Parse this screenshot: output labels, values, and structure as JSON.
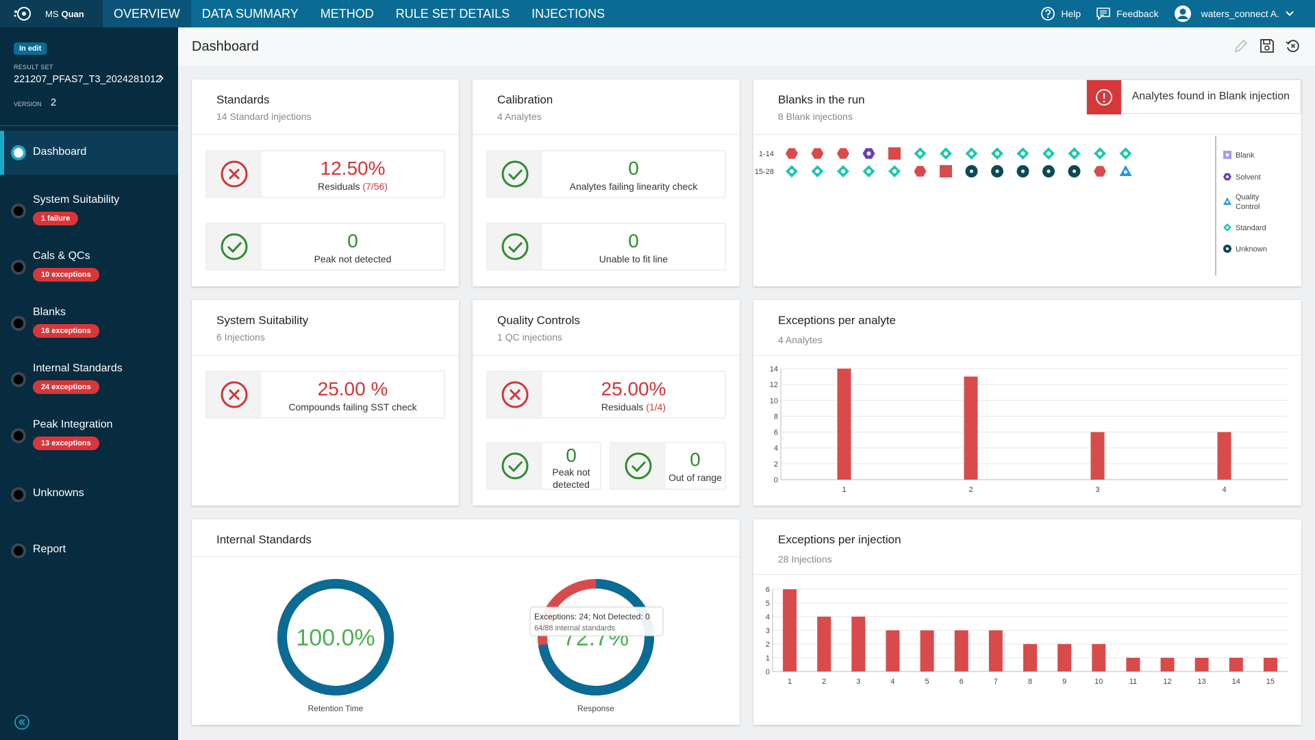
{
  "app": {
    "brand_prefix": "MS",
    "brand_name": "Quan"
  },
  "nav": [
    {
      "label": "OVERVIEW",
      "active": true
    },
    {
      "label": "DATA SUMMARY"
    },
    {
      "label": "METHOD"
    },
    {
      "label": "RULE SET DETAILS"
    },
    {
      "label": "INJECTIONS"
    }
  ],
  "topbar": {
    "help": "Help",
    "feedback": "Feedback",
    "user": "waters_connect A."
  },
  "sidebar": {
    "edit_badge": "In edit",
    "result_set_label": "RESULT SET",
    "result_set": "221207_PFAS7_T3_2024281012",
    "version_label": "VERSION",
    "version": "2",
    "items": [
      {
        "label": "Dashboard",
        "badge": "",
        "active": true
      },
      {
        "label": "System Suitability",
        "badge": "1 failure"
      },
      {
        "label": "Cals & QCs",
        "badge": "10 exceptions"
      },
      {
        "label": "Blanks",
        "badge": "16 exceptions"
      },
      {
        "label": "Internal Standards",
        "badge": "24 exceptions"
      },
      {
        "label": "Peak Integration",
        "badge": "13 exceptions"
      },
      {
        "label": "Unknowns",
        "badge": ""
      },
      {
        "label": "Report",
        "badge": ""
      }
    ]
  },
  "page": {
    "title": "Dashboard"
  },
  "standards": {
    "title": "Standards",
    "subtitle": "14 Standard injections",
    "m1": {
      "value": "12.50%",
      "label": "Residuals",
      "detail": "(7/56)"
    },
    "m2": {
      "value": "0",
      "label": "Peak not detected"
    }
  },
  "calibration": {
    "title": "Calibration",
    "subtitle": "4 Analytes",
    "m1": {
      "value": "0",
      "label": "Analytes failing linearity check"
    },
    "m2": {
      "value": "0",
      "label": "Unable to fit line"
    }
  },
  "blanks": {
    "title": "Blanks in the run",
    "subtitle": "8 Blank injections",
    "alert": "Analytes found in Blank injection",
    "row_labels": [
      "1-14",
      "15-28"
    ],
    "rows": [
      [
        "hexagon-red",
        "hexagon-red",
        "hexagon-red",
        "hexagon-purple",
        "square-red",
        "diamond",
        "diamond",
        "diamond",
        "diamond",
        "diamond",
        "diamond",
        "diamond",
        "diamond",
        "diamond"
      ],
      [
        "diamond",
        "diamond",
        "diamond",
        "diamond",
        "diamond",
        "hexagon-red",
        "square-red",
        "circle",
        "circle",
        "circle",
        "circle",
        "circle",
        "hexagon-red",
        "triangle"
      ]
    ],
    "legend": [
      "Blank",
      "Solvent",
      "Quality Control",
      "Standard",
      "Unknown"
    ],
    "colors": {
      "red": "#d94b4b",
      "purple": "#6a3fb5",
      "teal": "#1cc7b0",
      "dark": "#0c4a52",
      "blue": "#2196f3",
      "blank": "#a89ee8"
    }
  },
  "sst": {
    "title": "System Suitability",
    "subtitle": "6 Injections",
    "m1": {
      "value": "25.00 %",
      "label": "Compounds failing SST check"
    }
  },
  "qc": {
    "title": "Quality Controls",
    "subtitle": "1 QC injections",
    "m1": {
      "value": "25.00%",
      "label": "Residuals",
      "detail": "(1/4)"
    },
    "m2": {
      "value": "0",
      "label": "Peak not detected"
    },
    "m3": {
      "value": "0",
      "label": "Out of range"
    }
  },
  "epa": {
    "title": "Exceptions per analyte",
    "subtitle": "4 Analytes"
  },
  "istd": {
    "title": "Internal Standards",
    "d1": {
      "value": "100.0%",
      "label": "Retention Time",
      "fraction": 1.0
    },
    "d2": {
      "value": "72.7%",
      "label": "Response",
      "fraction": 0.727,
      "tooltip1": "Exceptions: 24; Not Detected: 0",
      "tooltip2": "64/88 internal standards"
    }
  },
  "epi": {
    "title": "Exceptions per injection",
    "subtitle": "28 Injections"
  },
  "chart_data": [
    {
      "type": "bar",
      "name": "Exceptions per analyte",
      "categories": [
        "1",
        "2",
        "3",
        "4"
      ],
      "values": [
        14,
        13,
        6,
        6
      ],
      "yticks": [
        0,
        2,
        4,
        6,
        8,
        10,
        12,
        14
      ],
      "ylim": [
        0,
        14
      ],
      "color": "#d94b4b",
      "grid": true
    },
    {
      "type": "bar",
      "name": "Exceptions per injection",
      "categories": [
        "1",
        "2",
        "3",
        "4",
        "5",
        "6",
        "7",
        "8",
        "9",
        "10",
        "11",
        "12",
        "13",
        "14",
        "15"
      ],
      "values": [
        6,
        4,
        4,
        3,
        3,
        3,
        3,
        2,
        2,
        2,
        1,
        1,
        1,
        1,
        1
      ],
      "yticks": [
        0,
        1,
        2,
        3,
        4,
        5,
        6
      ],
      "ylim": [
        0,
        6
      ],
      "color": "#d94b4b",
      "grid": true
    }
  ]
}
